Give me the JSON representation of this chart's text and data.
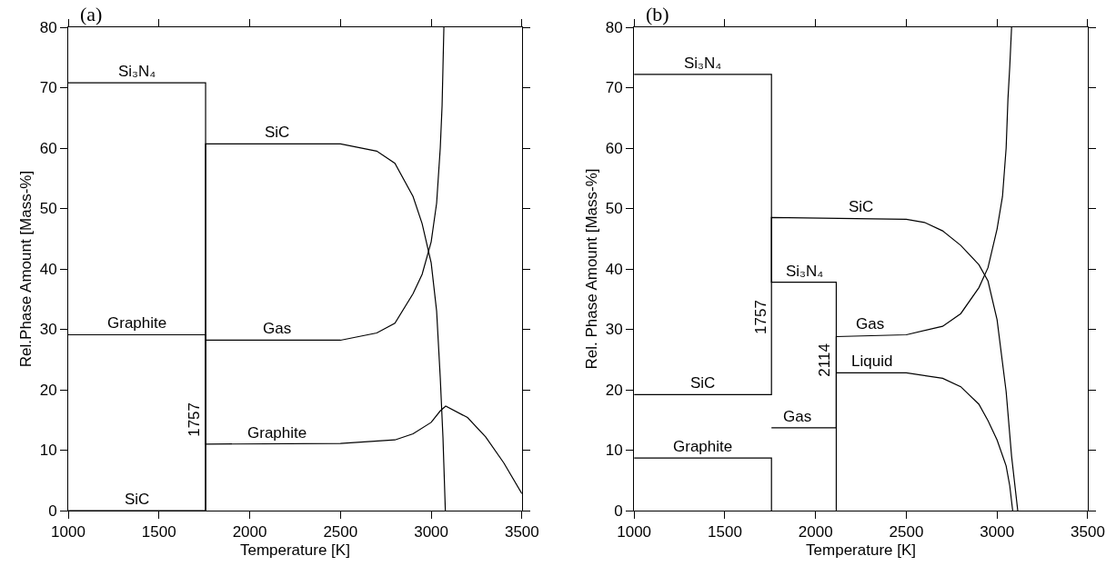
{
  "chart_data": [
    {
      "type": "line",
      "title": "(a)",
      "xlabel": "Temperature [K]",
      "ylabel": "Rel.Phase Amount [Mass-%]",
      "xlim": [
        1000,
        3500
      ],
      "xticks": [
        1000,
        1500,
        2000,
        2500,
        3000,
        3500
      ],
      "ylim": [
        0,
        80
      ],
      "yticks": [
        0,
        10,
        20,
        30,
        40,
        50,
        60,
        70,
        80
      ],
      "line_style": "solid",
      "series": [
        {
          "color": "#000000",
          "x": [
            1000,
            1757,
            1757
          ],
          "values": [
            70.8,
            70.8,
            0
          ]
        },
        {
          "color": "#000000",
          "x": [
            1000,
            1757,
            1757,
            2500,
            2800,
            2900,
            3000,
            3050,
            3080,
            3200,
            3300,
            3400,
            3500
          ],
          "values": [
            29.1,
            29.1,
            11.0,
            11.1,
            11.7,
            12.7,
            14.6,
            16.5,
            17.3,
            15.4,
            12.2,
            7.9,
            2.8
          ]
        },
        {
          "color": "#000000",
          "x": [
            1000,
            1757,
            1757,
            2500,
            2700,
            2800,
            2900,
            2950,
            3000,
            3030,
            3050,
            3065,
            3078
          ],
          "values": [
            0,
            0,
            60.7,
            60.7,
            59.5,
            57.5,
            52,
            47.5,
            41,
            33,
            22,
            12,
            0
          ]
        },
        {
          "color": "#000000",
          "x": [
            1757,
            2500,
            2700,
            2800,
            2900,
            2950,
            3000,
            3030,
            3050,
            3060,
            3065,
            3070
          ],
          "values": [
            28.2,
            28.2,
            29.4,
            31,
            35.9,
            39.1,
            44.5,
            50.9,
            60,
            67,
            73.5,
            80
          ]
        }
      ],
      "annotations": [
        {
          "text": "Si₃N₄",
          "x": 1380,
          "y": 70.8
        },
        {
          "text": "SiC",
          "x": 2150,
          "y": 60.7
        },
        {
          "text": "Graphite",
          "x": 1380,
          "y": 29.1
        },
        {
          "text": "Gas",
          "x": 2150,
          "y": 28.2
        },
        {
          "text": "Graphite",
          "x": 2150,
          "y": 11.0
        },
        {
          "text": "SiC",
          "x": 1380,
          "y": 0
        },
        {
          "text": "1757",
          "x": 1757,
          "y": 15
        }
      ]
    },
    {
      "type": "line",
      "title": "(b)",
      "xlabel": "Temperature [K]",
      "ylabel": "Rel. Phase Amount [Mass-%]",
      "xlim": [
        1000,
        3500
      ],
      "xticks": [
        1000,
        1500,
        2000,
        2500,
        3000,
        3500
      ],
      "ylim": [
        0,
        80
      ],
      "yticks": [
        0,
        10,
        20,
        30,
        40,
        50,
        60,
        70,
        80
      ],
      "line_style": "solid",
      "series": [
        {
          "color": "#000000",
          "x": [
            1000,
            1757,
            1757,
            2114,
            2114
          ],
          "values": [
            72.2,
            72.2,
            37.8,
            37.8,
            0
          ]
        },
        {
          "color": "#000000",
          "x": [
            1000,
            1757,
            1757
          ],
          "values": [
            8.7,
            8.7,
            0
          ]
        },
        {
          "color": "#000000",
          "x": [
            1000,
            1757,
            1757,
            2500,
            2600,
            2700,
            2800,
            2900,
            2950,
            3000,
            3050,
            3080,
            3114
          ],
          "values": [
            19.2,
            19.2,
            48.5,
            48.2,
            47.7,
            46.3,
            43.9,
            40.7,
            38,
            31.6,
            19.7,
            9,
            0
          ]
        },
        {
          "color": "#000000",
          "x": [
            1757,
            2114,
            2114,
            2500,
            2700,
            2800,
            2900,
            2950,
            3000,
            3030,
            3050,
            3060,
            3070,
            3080
          ],
          "values": [
            13.7,
            13.7,
            28.8,
            29.1,
            30.5,
            32.6,
            36.9,
            40.2,
            46.6,
            52,
            60,
            68.1,
            73.5,
            80
          ]
        },
        {
          "color": "#000000",
          "x": [
            2114,
            2500,
            2700,
            2800,
            2900,
            2950,
            3000,
            3050,
            3070,
            3086
          ],
          "values": [
            22.8,
            22.8,
            21.9,
            20.5,
            17.6,
            14.9,
            11.7,
            7.4,
            4.1,
            0
          ]
        }
      ],
      "annotations": [
        {
          "text": "Si₃N₄",
          "x": 1380,
          "y": 72.2
        },
        {
          "text": "SiC",
          "x": 2250,
          "y": 48.4
        },
        {
          "text": "Si₃N₄",
          "x": 1940,
          "y": 37.8
        },
        {
          "text": "Gas",
          "x": 2300,
          "y": 28.95
        },
        {
          "text": "Liquid",
          "x": 2310,
          "y": 22.8
        },
        {
          "text": "1757",
          "x": 1757,
          "y": 32
        },
        {
          "text": "2114",
          "x": 2114,
          "y": 25
        },
        {
          "text": "SiC",
          "x": 1380,
          "y": 19.2
        },
        {
          "text": "Graphite",
          "x": 1380,
          "y": 8.7
        },
        {
          "text": "Gas",
          "x": 1900,
          "y": 13.7
        }
      ]
    }
  ]
}
